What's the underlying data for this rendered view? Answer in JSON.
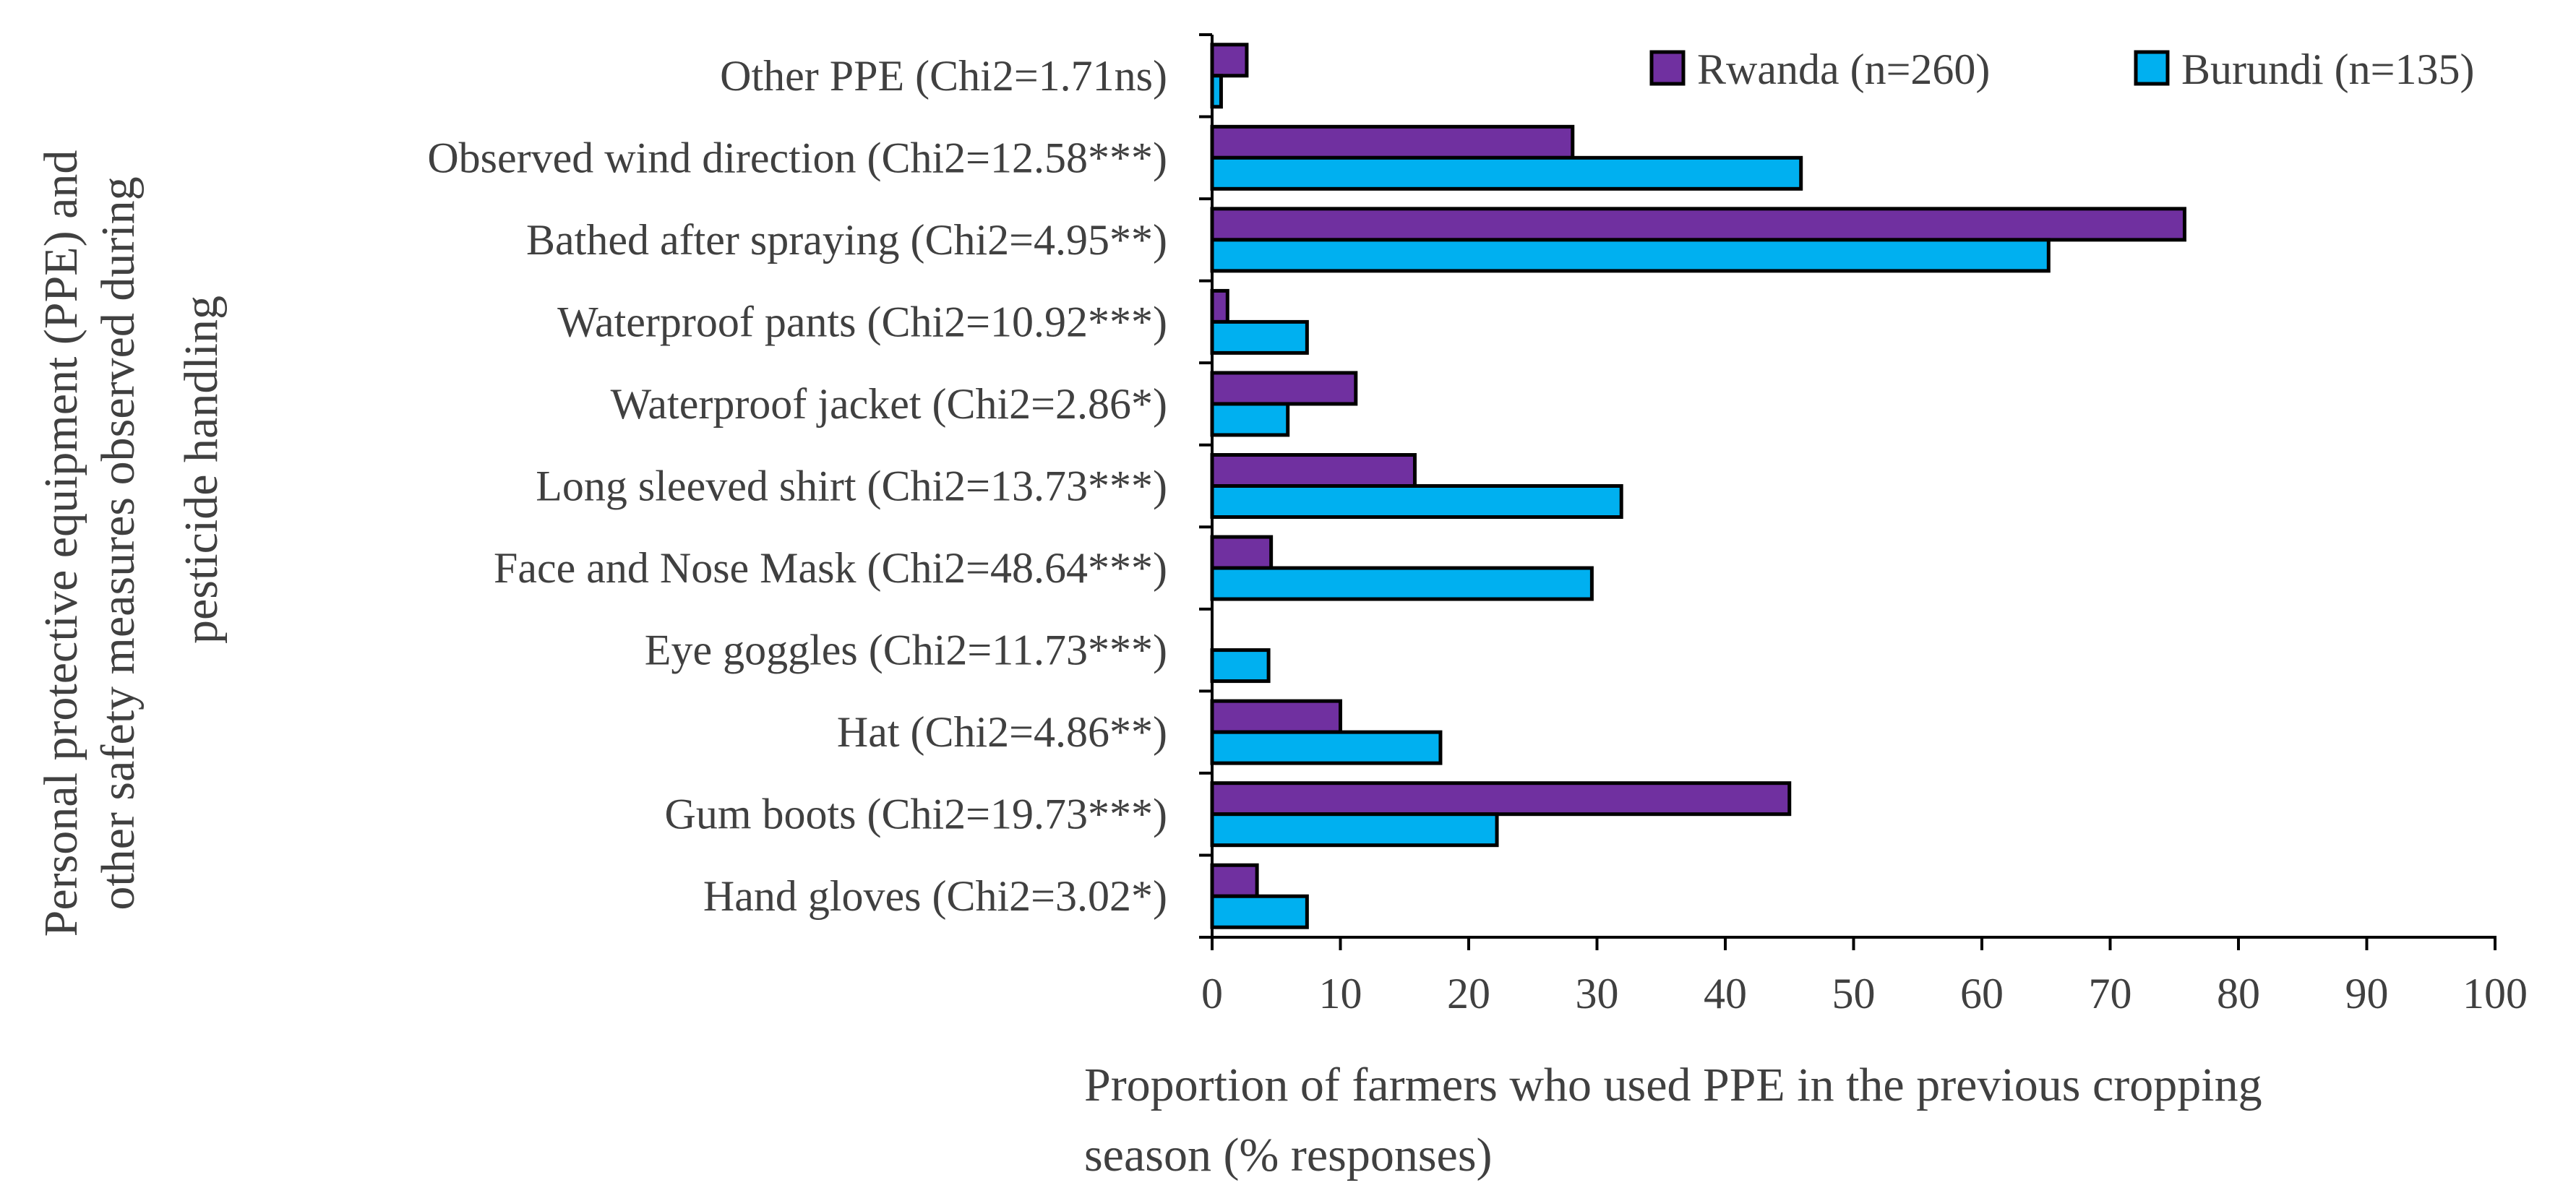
{
  "chart_data": {
    "type": "bar",
    "orientation": "horizontal",
    "title": "",
    "categories": [
      "Other PPE (Chi2=1.71ns)",
      "Observed wind direction (Chi2=12.58***)",
      "Bathed after spraying (Chi2=4.95**)",
      "Waterproof pants (Chi2=10.92***)",
      "Waterproof jacket (Chi2=2.86*)",
      "Long sleeved shirt (Chi2=13.73***)",
      "Face and Nose Mask (Chi2=48.64***)",
      "Eye goggles (Chi2=11.73***)",
      "Hat (Chi2=4.86**)",
      "Gum boots (Chi2=19.73***)",
      "Hand gloves (Chi2=3.02*)"
    ],
    "series": [
      {
        "name": "Rwanda (n=260)",
        "color": "#7030A0",
        "values": [
          2.7,
          28.1,
          75.8,
          1.2,
          11.2,
          15.8,
          4.6,
          0,
          10.0,
          45.0,
          3.5
        ]
      },
      {
        "name": "Burundi (n=135)",
        "color": "#00B0F0",
        "values": [
          0.7,
          45.9,
          65.2,
          7.4,
          5.9,
          31.9,
          29.6,
          4.4,
          17.8,
          22.2,
          7.4
        ]
      }
    ],
    "xlim": [
      0,
      100
    ],
    "xticks": [
      "0",
      "10",
      "20",
      "30",
      "40",
      "50",
      "60",
      "70",
      "80",
      "90",
      "100"
    ],
    "xlabel_lines": [
      "Proportion of farmers who used PPE in the previous cropping",
      "season  (% responses)"
    ],
    "ylabel_lines": [
      "Personal protective equipment (PPE) and",
      "other safety measures  observed during",
      "pesticide handling"
    ],
    "grid": false,
    "legend_position": "top-right"
  }
}
